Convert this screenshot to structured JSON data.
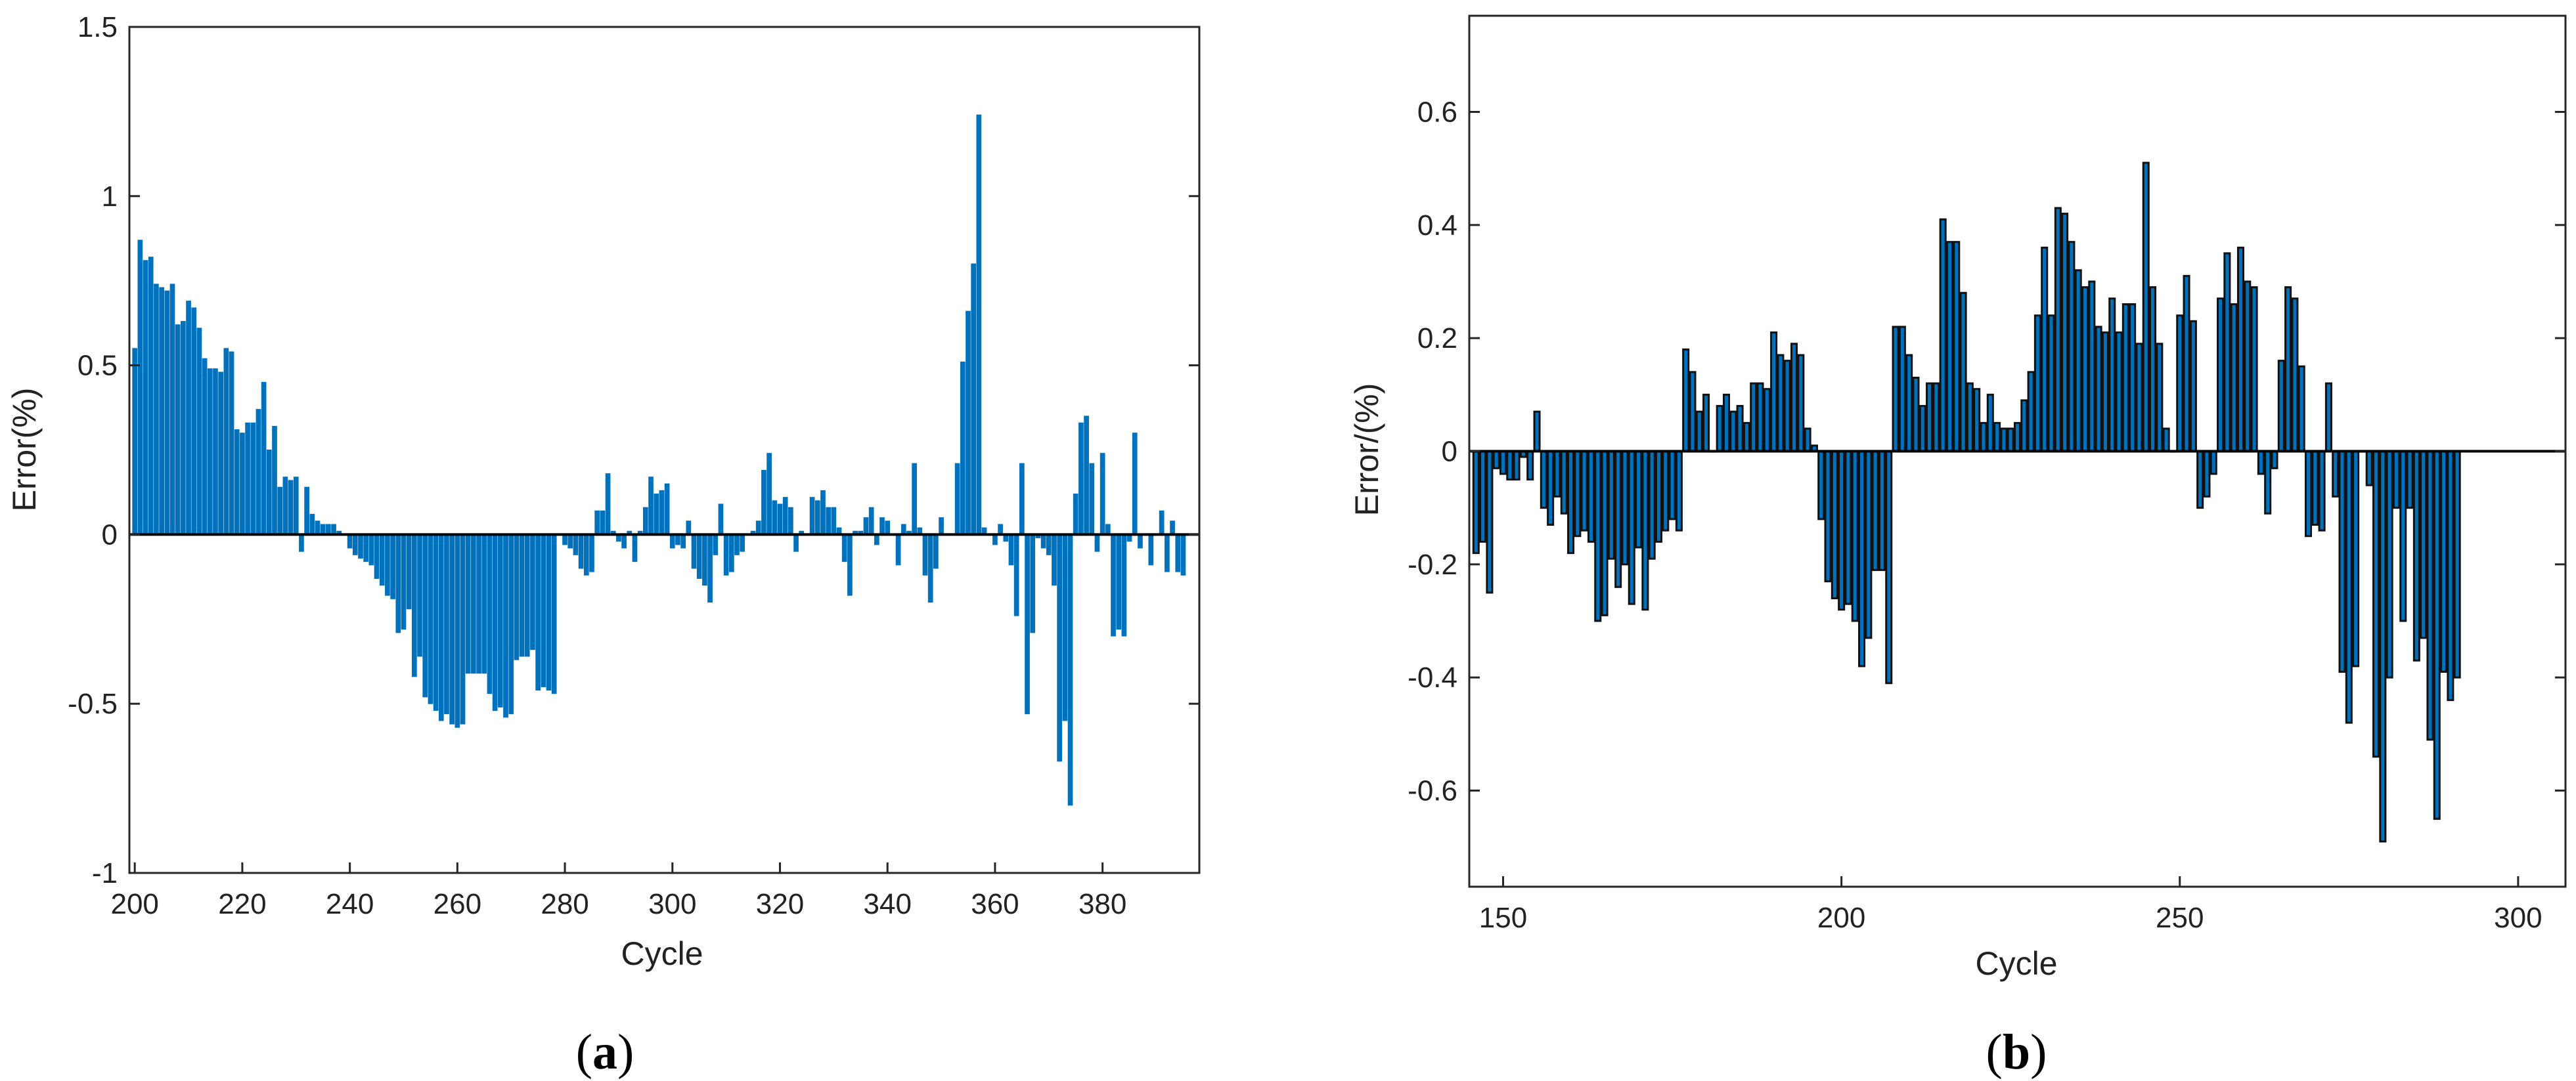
{
  "chart_data": [
    {
      "type": "bar",
      "panel_label": "(a)",
      "caption": {
        "open": "(",
        "letter": "a",
        "close": ")"
      },
      "xlabel": "Cycle",
      "ylabel": "Error(%)",
      "xlim": [
        199,
        398
      ],
      "ylim": [
        -1,
        1.5
      ],
      "xticks": [
        200,
        220,
        240,
        260,
        280,
        300,
        320,
        340,
        360,
        380
      ],
      "yticks": [
        -1,
        -0.5,
        0,
        0.5,
        1,
        1.5
      ],
      "ytick_labels": [
        "-1",
        "-0.5",
        "0",
        "0.5",
        "1",
        "1.5"
      ],
      "bar_color": "#0072BD",
      "bar_edge": "#0072BD",
      "grid": false,
      "x_start": 200,
      "values": [
        0.55,
        0.87,
        0.81,
        0.82,
        0.74,
        0.73,
        0.72,
        0.74,
        0.62,
        0.63,
        0.69,
        0.67,
        0.61,
        0.52,
        0.49,
        0.49,
        0.48,
        0.55,
        0.54,
        0.31,
        0.3,
        0.33,
        0.33,
        0.37,
        0.45,
        0.25,
        0.32,
        0.14,
        0.17,
        0.16,
        0.17,
        -0.05,
        0.14,
        0.06,
        0.04,
        0.03,
        0.03,
        0.03,
        0.01,
        0.0,
        -0.04,
        -0.06,
        -0.07,
        -0.08,
        -0.09,
        -0.13,
        -0.15,
        -0.18,
        -0.19,
        -0.29,
        -0.28,
        -0.22,
        -0.42,
        -0.36,
        -0.48,
        -0.5,
        -0.52,
        -0.55,
        -0.53,
        -0.56,
        -0.57,
        -0.56,
        -0.41,
        -0.41,
        -0.41,
        -0.41,
        -0.47,
        -0.52,
        -0.51,
        -0.54,
        -0.53,
        -0.37,
        -0.36,
        -0.36,
        -0.34,
        -0.46,
        -0.45,
        -0.46,
        -0.47,
        0.0,
        -0.03,
        -0.04,
        -0.06,
        -0.1,
        -0.12,
        -0.11,
        0.07,
        0.07,
        0.18,
        0.01,
        -0.02,
        -0.04,
        0.01,
        -0.08,
        0.01,
        0.08,
        0.17,
        0.12,
        0.13,
        0.15,
        -0.04,
        -0.03,
        -0.04,
        0.04,
        -0.1,
        -0.13,
        -0.15,
        -0.2,
        -0.06,
        0.09,
        -0.12,
        -0.11,
        -0.06,
        -0.05,
        0.0,
        0.01,
        0.04,
        0.19,
        0.24,
        0.1,
        0.09,
        0.11,
        0.08,
        -0.05,
        0.01,
        0.0,
        0.11,
        0.1,
        0.13,
        0.08,
        0.08,
        0.02,
        -0.08,
        -0.18,
        0.01,
        0.01,
        0.05,
        0.08,
        -0.03,
        0.05,
        0.04,
        0.0,
        -0.09,
        0.03,
        0.01,
        0.21,
        0.02,
        -0.12,
        -0.2,
        -0.1,
        0.05,
        0.0,
        0.0,
        0.21,
        0.51,
        0.66,
        0.8,
        1.24,
        0.02,
        0.0,
        -0.03,
        0.03,
        -0.02,
        -0.09,
        -0.24,
        0.21,
        -0.53,
        -0.29,
        -0.01,
        -0.04,
        -0.06,
        -0.15,
        -0.67,
        -0.55,
        -0.8,
        0.12,
        0.33,
        0.35,
        0.21,
        -0.05,
        0.24,
        0.03,
        -0.3,
        -0.28,
        -0.3,
        -0.02,
        0.3,
        -0.04,
        0.0,
        -0.09,
        0.0,
        0.07,
        -0.11,
        0.04,
        -0.11,
        -0.12,
        0.0
      ]
    },
    {
      "type": "bar",
      "panel_label": "(b)",
      "caption": {
        "open": "(",
        "letter": "b",
        "close": ")"
      },
      "xlabel": "Cycle",
      "ylabel": "Error/(%)",
      "xlim": [
        145,
        307
      ],
      "ylim": [
        -0.77,
        0.77
      ],
      "xticks": [
        150,
        200,
        250,
        300
      ],
      "yticks": [
        -0.6,
        -0.4,
        -0.2,
        0,
        0.2,
        0.4,
        0.6
      ],
      "ytick_labels": [
        "-0.6",
        "-0.4",
        "-0.2",
        "0",
        "0.2",
        "0.4",
        "0.6"
      ],
      "bar_color": "#0072BD",
      "bar_edge": "#111111",
      "grid": false,
      "x_start": 146,
      "values": [
        -0.18,
        -0.16,
        -0.25,
        -0.03,
        -0.04,
        -0.05,
        -0.05,
        -0.01,
        -0.05,
        0.07,
        -0.1,
        -0.13,
        -0.08,
        -0.11,
        -0.18,
        -0.15,
        -0.14,
        -0.16,
        -0.3,
        -0.29,
        -0.19,
        -0.24,
        -0.2,
        -0.27,
        -0.17,
        -0.28,
        -0.19,
        -0.16,
        -0.14,
        -0.12,
        -0.14,
        0.18,
        0.14,
        0.07,
        0.1,
        0.0,
        0.08,
        0.1,
        0.07,
        0.08,
        0.05,
        0.12,
        0.12,
        0.11,
        0.21,
        0.17,
        0.16,
        0.19,
        0.17,
        0.04,
        0.01,
        -0.12,
        -0.23,
        -0.26,
        -0.28,
        -0.27,
        -0.3,
        -0.38,
        -0.33,
        -0.21,
        -0.21,
        -0.41,
        0.22,
        0.22,
        0.17,
        0.13,
        0.08,
        0.12,
        0.12,
        0.41,
        0.37,
        0.37,
        0.28,
        0.12,
        0.11,
        0.05,
        0.1,
        0.05,
        0.04,
        0.04,
        0.05,
        0.09,
        0.14,
        0.24,
        0.36,
        0.24,
        0.43,
        0.42,
        0.37,
        0.32,
        0.29,
        0.3,
        0.22,
        0.21,
        0.27,
        0.21,
        0.26,
        0.26,
        0.19,
        0.51,
        0.29,
        0.19,
        0.04,
        0.0,
        0.24,
        0.31,
        0.23,
        -0.1,
        -0.08,
        -0.04,
        0.27,
        0.35,
        0.26,
        0.36,
        0.3,
        0.29,
        -0.04,
        -0.11,
        -0.03,
        0.16,
        0.29,
        0.27,
        0.15,
        -0.15,
        -0.13,
        -0.14,
        0.12,
        -0.08,
        -0.39,
        -0.48,
        -0.38,
        0.0,
        -0.06,
        -0.54,
        -0.69,
        -0.4,
        -0.1,
        -0.3,
        -0.1,
        -0.37,
        -0.33,
        -0.51,
        -0.65,
        -0.39,
        -0.44,
        -0.4
      ]
    }
  ]
}
